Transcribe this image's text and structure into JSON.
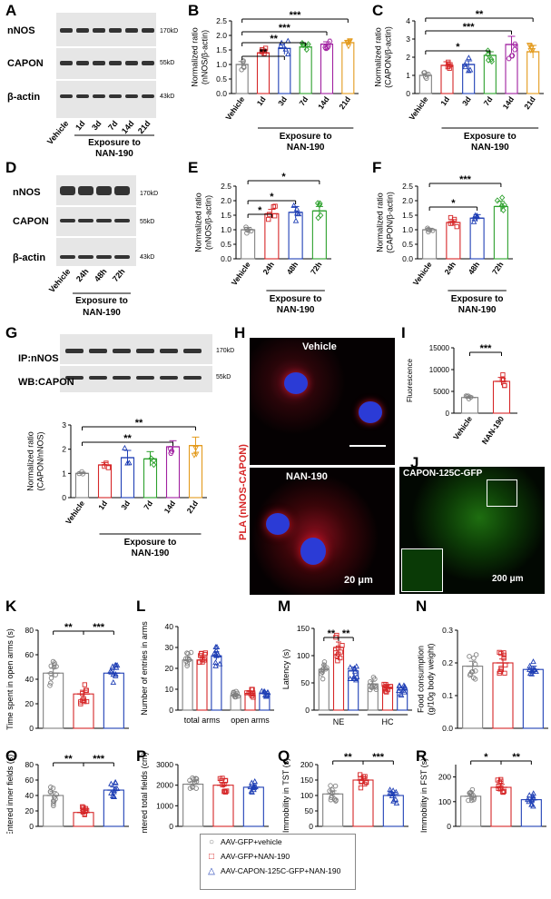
{
  "panel_labels": {
    "A": "A",
    "B": "B",
    "C": "C",
    "D": "D",
    "E": "E",
    "F": "F",
    "G": "G",
    "H": "H",
    "I": "I",
    "J": "J",
    "K": "K",
    "L": "L",
    "M": "M",
    "N": "N",
    "O": "O",
    "P": "P",
    "Q": "Q",
    "R": "R"
  },
  "colors": {
    "vehicle": "#808080",
    "d1": "#d62728",
    "d3": "#1f3fb5",
    "d7": "#2ca02c",
    "d14": "#a020a0",
    "d21": "#e39a1c",
    "gfp_vehicle": "#808080",
    "gfp_nan": "#d62728",
    "capon": "#1f3fb5"
  },
  "blot_A": {
    "labels": [
      "nNOS",
      "CAPON",
      "β-actin"
    ],
    "kd": [
      "170kD",
      "55kD",
      "43kD"
    ],
    "lanes": [
      "Vehicle",
      "1d",
      "3d",
      "7d",
      "14d",
      "21d"
    ],
    "group": "Exposure to",
    "drug": "NAN-190"
  },
  "blot_D": {
    "labels": [
      "nNOS",
      "CAPON",
      "β-actin"
    ],
    "kd": [
      "170kD",
      "55kD",
      "43kD"
    ],
    "lanes": [
      "Vehicle",
      "24h",
      "48h",
      "72h"
    ],
    "group": "Exposure to",
    "drug": "NAN-190"
  },
  "blot_G": {
    "labels": [
      "IP:nNOS",
      "WB:CAPON"
    ],
    "kd": [
      "170kD",
      "55kD"
    ]
  },
  "micro_H": {
    "side_label": "PLA (nNOS-CAPON)",
    "top": "Vehicle",
    "bottom": "NAN-190",
    "scale": "20 μm"
  },
  "micro_J": {
    "title": "CAPON-125C-GFP",
    "scale": "200 μm"
  },
  "chart_data": [
    {
      "panel": "B",
      "type": "bar",
      "ylabel": "Normalized ratio\n(nNOS/β-actin)",
      "ylim": [
        0,
        2.5
      ],
      "yticks": [
        0,
        0.5,
        1.0,
        1.5,
        2.0,
        2.5
      ],
      "categories": [
        "Vehicle",
        "1d",
        "3d",
        "7d",
        "14d",
        "21d"
      ],
      "values": [
        1.0,
        1.4,
        1.55,
        1.6,
        1.7,
        1.75
      ],
      "errors": [
        0.1,
        0.12,
        0.2,
        0.1,
        0.08,
        0.08
      ],
      "xlabel": "Exposure to\nNAN-190",
      "sig": [
        "**",
        "**",
        "***",
        "***"
      ]
    },
    {
      "panel": "C",
      "type": "bar",
      "ylabel": "Normalized ratio\n(CAPON/β-actin)",
      "ylim": [
        0,
        4
      ],
      "yticks": [
        0,
        1,
        2,
        3,
        4
      ],
      "categories": [
        "Vehicle",
        "1d",
        "3d",
        "7d",
        "14d",
        "21d"
      ],
      "values": [
        1.0,
        1.55,
        1.6,
        2.1,
        2.7,
        2.3
      ],
      "errors": [
        0.1,
        0.2,
        0.2,
        0.2,
        0.45,
        0.35
      ],
      "xlabel": "Exposure to\nNAN-190",
      "sig": [
        "*",
        "***",
        "**"
      ]
    },
    {
      "panel": "E",
      "type": "bar",
      "ylabel": "Normalized ratio\n(nNOS/β-actin)",
      "ylim": [
        0,
        2.5
      ],
      "yticks": [
        0,
        0.5,
        1.0,
        1.5,
        2.0,
        2.5
      ],
      "categories": [
        "Vehicle",
        "24h",
        "48h",
        "72h"
      ],
      "values": [
        1.0,
        1.55,
        1.6,
        1.65
      ],
      "errors": [
        0.08,
        0.15,
        0.2,
        0.15
      ],
      "xlabel": "Exposure to\nNAN-190",
      "sig": [
        "*",
        "*",
        "*"
      ]
    },
    {
      "panel": "F",
      "type": "bar",
      "ylabel": "Normalized ratio\n(CAPON/β-actin)",
      "ylim": [
        0,
        2.5
      ],
      "yticks": [
        0,
        0.5,
        1.0,
        1.5,
        2.0,
        2.5
      ],
      "categories": [
        "Vehicle",
        "24h",
        "48h",
        "72h"
      ],
      "values": [
        1.0,
        1.25,
        1.4,
        1.8
      ],
      "errors": [
        0.05,
        0.1,
        0.12,
        0.18
      ],
      "xlabel": "Exposure to\nNAN-190",
      "sig": [
        "*",
        "***"
      ]
    },
    {
      "panel": "G",
      "type": "bar",
      "ylabel": "Normalized ratio\n(CAPON/nNOS)",
      "ylim": [
        0,
        3
      ],
      "yticks": [
        0,
        1,
        2,
        3
      ],
      "categories": [
        "Vehicle",
        "1d",
        "3d",
        "7d",
        "14d",
        "21d"
      ],
      "values": [
        1.0,
        1.35,
        1.65,
        1.6,
        2.1,
        2.15
      ],
      "errors": [
        0.05,
        0.1,
        0.3,
        0.3,
        0.25,
        0.35
      ],
      "xlabel": "Exposure to\nNAN-190",
      "sig": [
        "**",
        "**"
      ]
    },
    {
      "panel": "I",
      "type": "bar",
      "ylabel": "Fluorescence",
      "ylim": [
        0,
        15000
      ],
      "yticks": [
        0,
        5000,
        10000,
        15000
      ],
      "categories": [
        "Vehicle",
        "NAN-190"
      ],
      "values": [
        3600,
        7300
      ],
      "errors": [
        300,
        900
      ],
      "sig": [
        "***"
      ]
    },
    {
      "panel": "K",
      "type": "bar",
      "ylabel": "Time spent in open arms (s)",
      "ylim": [
        0,
        80
      ],
      "yticks": [
        0,
        20,
        40,
        60,
        80
      ],
      "categories": [
        "",
        "",
        ""
      ],
      "values": [
        45,
        28,
        45
      ],
      "errors": [
        4,
        3,
        3
      ],
      "sig": [
        "**",
        "***"
      ]
    },
    {
      "panel": "L",
      "type": "bar",
      "ylabel": "Number of entries in arms",
      "ylim": [
        0,
        40
      ],
      "yticks": [
        0,
        10,
        20,
        30,
        40
      ],
      "groups": [
        "total arms",
        "open arms"
      ],
      "values": [
        [
          24,
          24,
          26
        ],
        [
          7,
          8,
          8
        ]
      ],
      "errors": [
        [
          1.5,
          1.5,
          2
        ],
        [
          0.8,
          0.8,
          0.8
        ]
      ]
    },
    {
      "panel": "M",
      "type": "bar",
      "ylabel": "Latency (s)",
      "ylim": [
        0,
        150
      ],
      "yticks": [
        0,
        50,
        100,
        150
      ],
      "groups": [
        "NE",
        "HC"
      ],
      "values": [
        [
          75,
          115,
          72
        ],
        [
          48,
          42,
          37
        ]
      ],
      "errors": [
        [
          8,
          10,
          7
        ],
        [
          5,
          4,
          4
        ]
      ],
      "sig": [
        "**",
        "**"
      ]
    },
    {
      "panel": "N",
      "type": "bar",
      "ylabel": "Food consumption\n(g/10g body weight)",
      "ylim": [
        0,
        0.3
      ],
      "yticks": [
        0.0,
        0.1,
        0.2,
        0.3
      ],
      "categories": [
        "",
        "",
        ""
      ],
      "values": [
        0.19,
        0.2,
        0.18
      ],
      "errors": [
        0.015,
        0.012,
        0.01
      ]
    },
    {
      "panel": "O",
      "type": "bar",
      "ylabel": "Entered inner fields (s)",
      "ylim": [
        0,
        80
      ],
      "yticks": [
        0,
        20,
        40,
        60,
        80
      ],
      "categories": [
        "",
        "",
        ""
      ],
      "values": [
        40,
        18,
        47
      ],
      "errors": [
        5,
        3,
        4
      ],
      "sig": [
        "**",
        "***"
      ]
    },
    {
      "panel": "P",
      "type": "bar",
      "ylabel": "Entered total fields (cm)",
      "ylim": [
        0,
        3000
      ],
      "yticks": [
        0,
        1000,
        2000,
        3000
      ],
      "categories": [
        "",
        "",
        ""
      ],
      "values": [
        2050,
        2000,
        1900
      ],
      "errors": [
        120,
        130,
        130
      ]
    },
    {
      "panel": "Q",
      "type": "bar",
      "ylabel": "Immobility in TST (s)",
      "ylim": [
        0,
        200
      ],
      "yticks": [
        0,
        50,
        100,
        150,
        200
      ],
      "categories": [
        "",
        "",
        ""
      ],
      "values": [
        105,
        150,
        100
      ],
      "errors": [
        10,
        10,
        10
      ],
      "sig": [
        "**",
        "***"
      ]
    },
    {
      "panel": "R",
      "type": "bar",
      "ylabel": "Immobility in FST (s)",
      "ylim": [
        0,
        250
      ],
      "yticks": [
        0,
        100,
        200
      ],
      "categories": [
        "",
        "",
        ""
      ],
      "values": [
        122,
        158,
        108
      ],
      "errors": [
        10,
        12,
        10
      ],
      "sig": [
        "*",
        "**"
      ]
    }
  ],
  "legend": [
    {
      "symbol": "circle",
      "label": "AAV-GFP+vehicle"
    },
    {
      "symbol": "square",
      "label": "AAV-GFP+NAN-190"
    },
    {
      "symbol": "triangle",
      "label": "AAV-CAPON-125C-GFP+NAN-190"
    }
  ]
}
